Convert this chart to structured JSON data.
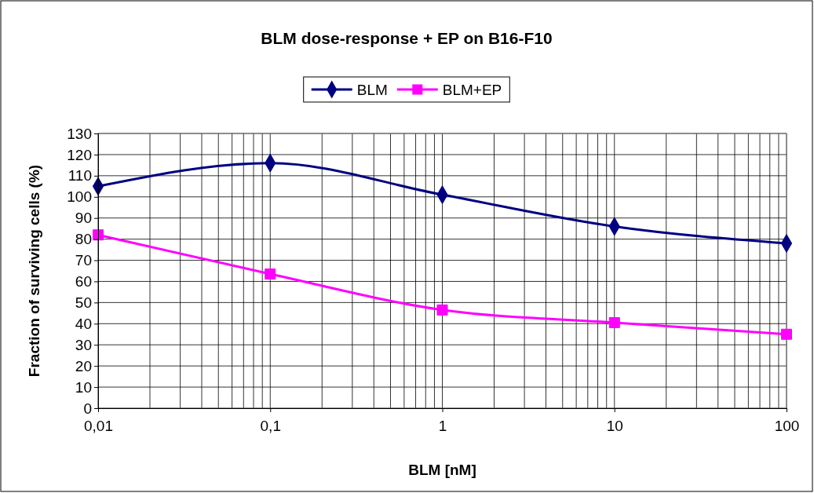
{
  "chart_data": {
    "type": "line",
    "title": "BLM dose-response + EP on B16-F10",
    "xlabel": "BLM [nM]",
    "ylabel": "Fraction of surviving cells (%)",
    "x": [
      0.01,
      0.1,
      1,
      10,
      100
    ],
    "series": [
      {
        "name": "BLM",
        "color": "#000080",
        "marker": "diamond",
        "values": [
          105,
          116,
          101,
          86,
          78
        ]
      },
      {
        "name": "BLM+EP",
        "color": "#ff00ff",
        "marker": "square",
        "values": [
          82,
          63.5,
          46.5,
          40.5,
          35
        ]
      }
    ],
    "log": "x",
    "xlim": [
      0.01,
      100
    ],
    "xticks": [
      {
        "value": 0.01,
        "label": "0,01"
      },
      {
        "value": 0.02,
        "label": null
      },
      {
        "value": 0.03,
        "label": null
      },
      {
        "value": 0.04,
        "label": null
      },
      {
        "value": 0.05,
        "label": null
      },
      {
        "value": 0.06,
        "label": null
      },
      {
        "value": 0.07,
        "label": null
      },
      {
        "value": 0.08,
        "label": null
      },
      {
        "value": 0.09,
        "label": null
      },
      {
        "value": 0.1,
        "label": "0,1"
      },
      {
        "value": 0.2,
        "label": null
      },
      {
        "value": 0.3,
        "label": null
      },
      {
        "value": 0.4,
        "label": null
      },
      {
        "value": 0.5,
        "label": null
      },
      {
        "value": 0.6,
        "label": null
      },
      {
        "value": 0.7,
        "label": null
      },
      {
        "value": 0.8,
        "label": null
      },
      {
        "value": 0.9,
        "label": null
      },
      1,
      {
        "value": 2,
        "label": null
      },
      {
        "value": 3,
        "label": null
      },
      {
        "value": 4,
        "label": null
      },
      {
        "value": 5,
        "label": null
      },
      {
        "value": 6,
        "label": null
      },
      {
        "value": 7,
        "label": null
      },
      {
        "value": 8,
        "label": null
      },
      {
        "value": 9,
        "label": null
      },
      10,
      {
        "value": 20,
        "label": null
      },
      {
        "value": 30,
        "label": null
      },
      {
        "value": 40,
        "label": null
      },
      {
        "value": 50,
        "label": null
      },
      {
        "value": 60,
        "label": null
      },
      {
        "value": 70,
        "label": null
      },
      {
        "value": 80,
        "label": null
      },
      {
        "value": 90,
        "label": null
      },
      100
    ],
    "ylim": [
      0,
      130
    ],
    "yticks": [
      0,
      10,
      20,
      30,
      40,
      50,
      60,
      70,
      80,
      90,
      100,
      110,
      120,
      130
    ],
    "grid": true,
    "legend": "top",
    "line_style": "solid"
  }
}
